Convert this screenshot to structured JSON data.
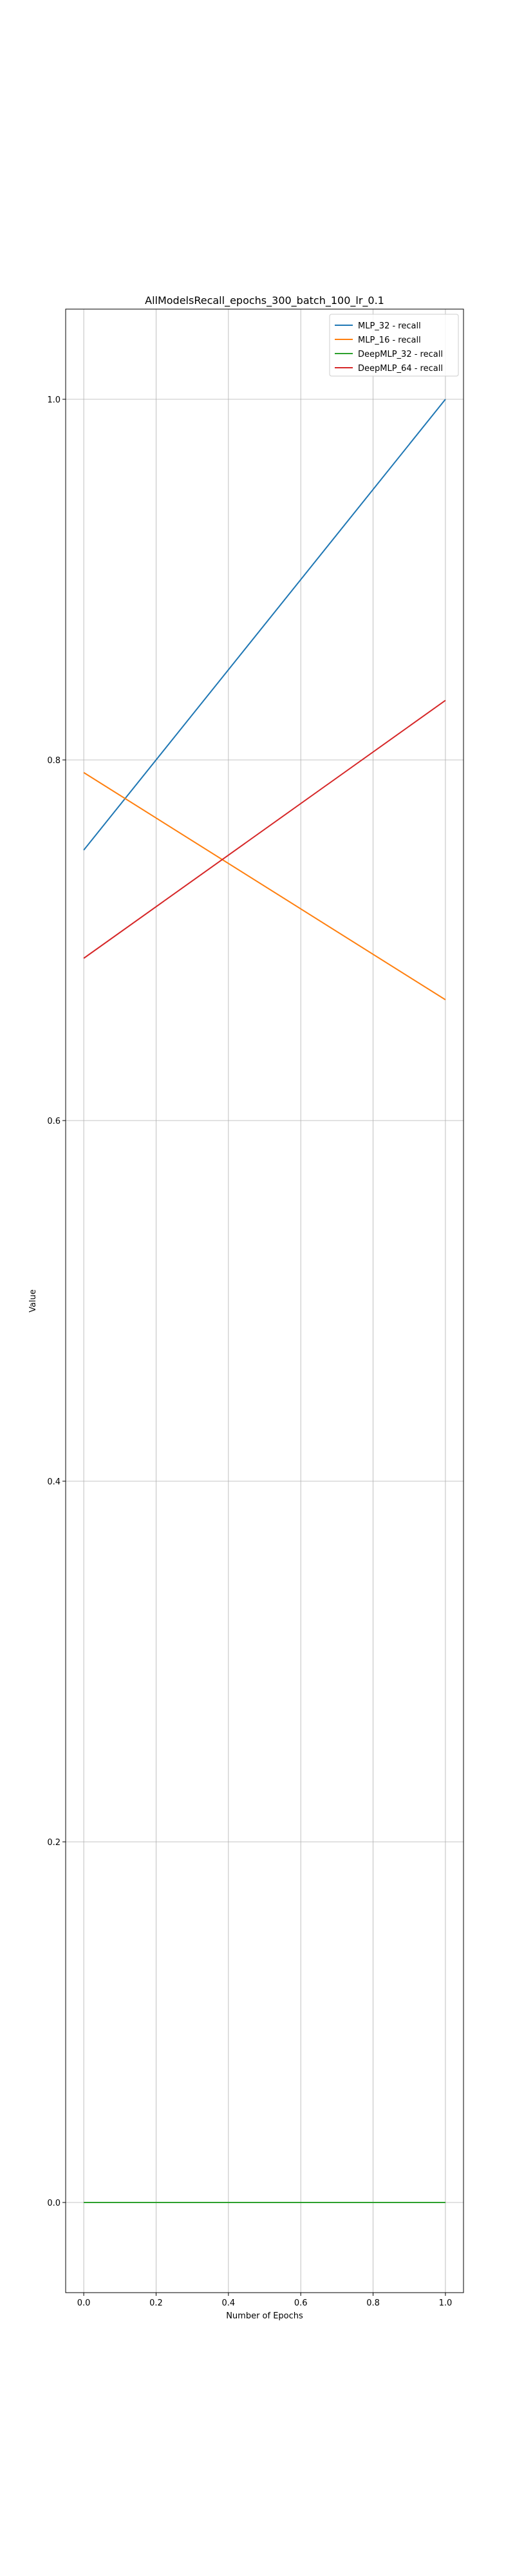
{
  "chart_data": {
    "type": "line",
    "title": "AllModelsRecall_epochs_300_batch_100_lr_0.1",
    "xlabel": "Number of Epochs",
    "ylabel": "Value",
    "x": [
      0.0,
      1.0
    ],
    "xlim": [
      -0.05,
      1.05
    ],
    "ylim": [
      -0.05,
      1.05
    ],
    "x_ticks": [
      0.0,
      0.2,
      0.4,
      0.6,
      0.8,
      1.0
    ],
    "x_tick_labels": [
      "0.0",
      "0.2",
      "0.4",
      "0.6",
      "0.8",
      "1.0"
    ],
    "y_ticks": [
      0.0,
      0.2,
      0.4,
      0.6,
      0.8,
      1.0
    ],
    "y_tick_labels": [
      "0.0",
      "0.2",
      "0.4",
      "0.6",
      "0.8",
      "1.0"
    ],
    "grid": true,
    "legend_position": "top-right",
    "series": [
      {
        "name": "MLP_32 - recall",
        "color": "#1f77b4",
        "values": [
          0.75,
          1.0
        ]
      },
      {
        "name": "MLP_16 - recall",
        "color": "#ff7f0e",
        "values": [
          0.793,
          0.667
        ]
      },
      {
        "name": "DeepMLP_32 - recall",
        "color": "#2ca02c",
        "values": [
          0.0,
          0.0
        ]
      },
      {
        "name": "DeepMLP_64 - recall",
        "color": "#d62728",
        "values": [
          0.69,
          0.833
        ]
      }
    ]
  }
}
